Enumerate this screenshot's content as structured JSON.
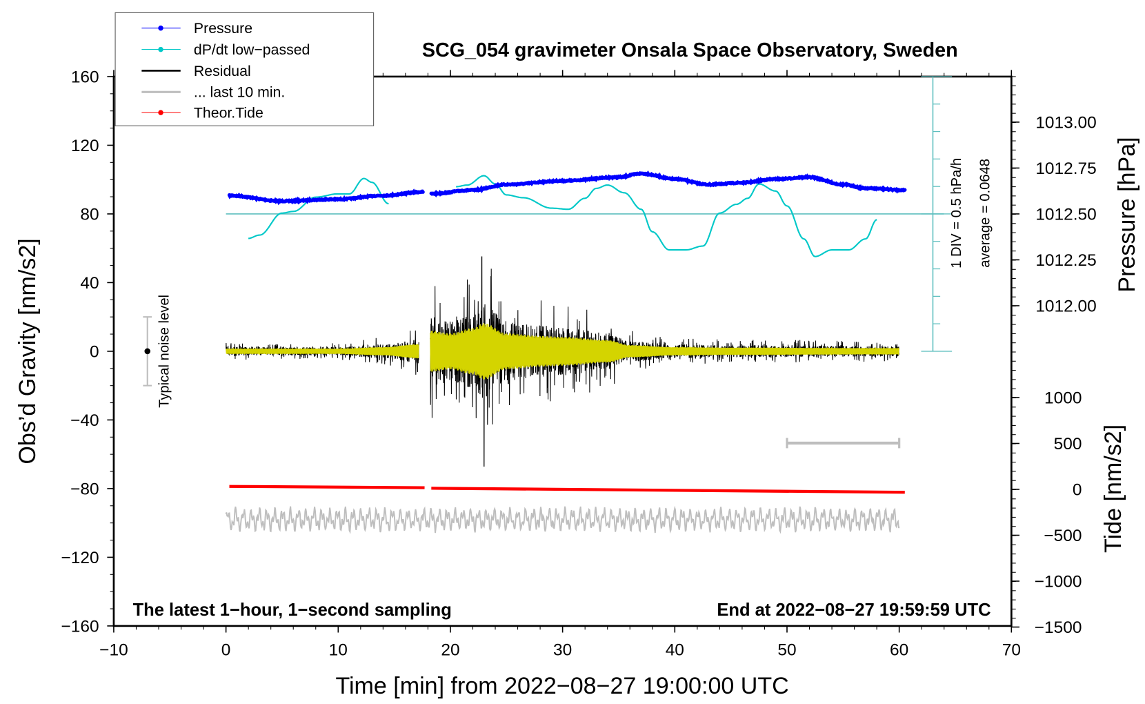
{
  "chart_data": {
    "type": "line",
    "title": "SCG_054 gravimeter Onsala Space Observatory, Sweden",
    "xlabel": "Time [min] from 2022−08−27 19:00:00 UTC",
    "ylabel": "Obs’d Gravity [nm/s2]",
    "ylabel_right_top": "Pressure [hPa]",
    "ylabel_right_bottom": "Tide [nm/s2]",
    "xlim": [
      -10,
      70
    ],
    "ylim": [
      -160,
      160
    ],
    "x_ticks": [
      "−10",
      "0",
      "10",
      "20",
      "30",
      "40",
      "50",
      "60",
      "70"
    ],
    "y_ticks": [
      "160",
      "120",
      "80",
      "40",
      "0",
      "−40",
      "−80",
      "−120",
      "−160"
    ],
    "pressure_ticks": [
      "1013.00",
      "1012.75",
      "1012.50",
      "1012.25",
      "1012.00"
    ],
    "tide_ticks": [
      "1000",
      "500",
      "0",
      "−500",
      "−1000",
      "−1500"
    ],
    "legend": {
      "placement": "top-left",
      "entries": [
        {
          "label": "Pressure",
          "color": "#0000ff"
        },
        {
          "label": "dP/dt low−passed",
          "color": "#00c8c8"
        },
        {
          "label": "Residual",
          "color": "#000000"
        },
        {
          "label": "... last 10 min.",
          "color": "#bebebe"
        },
        {
          "label": "Theor.Tide",
          "color": "#ff0000"
        }
      ]
    },
    "annotations": {
      "bottom_left": "The latest 1−hour, 1−second sampling",
      "bottom_right": "End at 2022−08−27 19:59:59 UTC",
      "div_label": "1 DIV = 0.5 hPa/h",
      "average_label": "average = 0.0648",
      "noise_label": "Typical noise level"
    },
    "noise_level": {
      "x": -7,
      "center": 0,
      "halfwidth": 20
    },
    "dpdt_average": 0.0648,
    "dpdt_div": 0.5,
    "pressure_hpa": {
      "x": [
        0.3,
        5,
        10,
        14,
        17.6,
        18.3,
        22,
        25,
        30,
        35,
        37,
        40,
        43,
        46,
        49,
        52,
        55,
        57,
        60.5
      ],
      "y": [
        1012.6,
        1012.57,
        1012.58,
        1012.6,
        1012.62,
        1012.61,
        1012.63,
        1012.66,
        1012.68,
        1012.7,
        1012.72,
        1012.69,
        1012.66,
        1012.67,
        1012.69,
        1012.7,
        1012.66,
        1012.64,
        1012.63
      ],
      "gap": [
        17.6,
        18.3
      ]
    },
    "dpdt_hpa_per_h": {
      "segments": [
        {
          "x": [
            2,
            3,
            5,
            6,
            8,
            10,
            11,
            12.3,
            13,
            14.5
          ],
          "y": [
            -0.38,
            -0.32,
            0.08,
            0.11,
            0.37,
            0.43,
            0.43,
            0.71,
            0.64,
            0.25
          ]
        },
        {
          "x": [
            20.5,
            21.5,
            23,
            24,
            25,
            26.5,
            29,
            30.5,
            32,
            33,
            34,
            35.5,
            37,
            38,
            39.5,
            41,
            42.5,
            44,
            45.5,
            46.5,
            47.5,
            49,
            50,
            51.5,
            52.5,
            54,
            55.5,
            57,
            58
          ],
          "y": [
            0.56,
            0.59,
            0.76,
            0.61,
            0.41,
            0.36,
            0.17,
            0.15,
            0.35,
            0.53,
            0.59,
            0.45,
            0.15,
            -0.26,
            -0.59,
            -0.59,
            -0.52,
            0.08,
            0.24,
            0.35,
            0.61,
            0.48,
            0.21,
            -0.39,
            -0.71,
            -0.59,
            -0.59,
            -0.39,
            -0.04
          ]
        }
      ]
    },
    "residual_envelope": {
      "x": [
        0,
        10,
        14,
        17.2,
        18.2,
        20,
        22,
        23,
        25,
        28,
        30,
        34,
        36,
        40,
        45,
        60
      ],
      "amplitude": [
        5,
        5,
        8,
        14,
        40,
        35,
        45,
        55,
        35,
        30,
        28,
        22,
        12,
        8,
        7,
        6
      ],
      "gap": [
        17.2,
        18.2
      ],
      "min": -67,
      "max": 55
    },
    "tide_nms2": {
      "x": [
        0.3,
        17.7,
        18.3,
        60.5
      ],
      "y": [
        32,
        18,
        12,
        -32
      ],
      "gap": [
        17.7,
        18.3
      ]
    },
    "last10_offset": -98,
    "scale_bar_min": [
      50,
      60
    ]
  }
}
